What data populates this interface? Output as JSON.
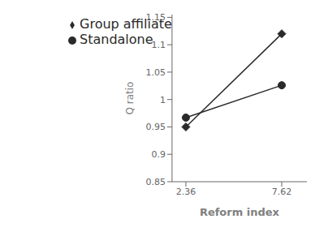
{
  "chart_data": {
    "type": "line",
    "x": [
      2.36,
      7.62
    ],
    "series": [
      {
        "name": "Standalone",
        "color": "#2a2a2a",
        "marker": "circle",
        "values": [
          0.967,
          1.026
        ]
      },
      {
        "name": "Group affiliate",
        "color": "#2a2a2a",
        "marker": "diamond",
        "values": [
          0.95,
          1.12
        ]
      }
    ],
    "xlabel": "Reform index",
    "ylabel": "Q ratio",
    "xlim": [
      1.6,
      9.0
    ],
    "ylim": [
      0.85,
      1.155
    ],
    "xticks": [
      2.36,
      7.62
    ],
    "yticks": [
      0.85,
      0.9,
      0.95,
      1,
      1.05,
      1.1,
      1.15
    ],
    "legend": "upper left",
    "grid": false
  }
}
